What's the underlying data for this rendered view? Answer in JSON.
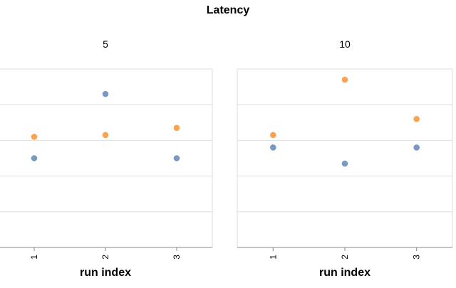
{
  "chart_data": {
    "type": "scatter",
    "title": "Latency",
    "facets": [
      {
        "label": "5",
        "x": [
          1,
          2,
          3
        ],
        "series": [
          {
            "color": "#4c78a8",
            "values": [
              2.5,
              4.3,
              2.5
            ]
          },
          {
            "color": "#f58518",
            "values": [
              3.1,
              3.15,
              3.35
            ]
          }
        ]
      },
      {
        "label": "10",
        "x": [
          1,
          2,
          3
        ],
        "series": [
          {
            "color": "#4c78a8",
            "values": [
              2.8,
              2.35,
              2.8
            ]
          },
          {
            "color": "#f58518",
            "values": [
              3.15,
              4.7,
              3.6
            ]
          }
        ]
      }
    ],
    "x_categories": [
      "1",
      "2",
      "3"
    ],
    "xlabel": "run index",
    "ylabel": "",
    "ylim": [
      0,
      5
    ],
    "grid": true,
    "legend": "none"
  },
  "colors": {
    "grid": "#dddddd",
    "axis": "#888888",
    "text": "#000000"
  }
}
